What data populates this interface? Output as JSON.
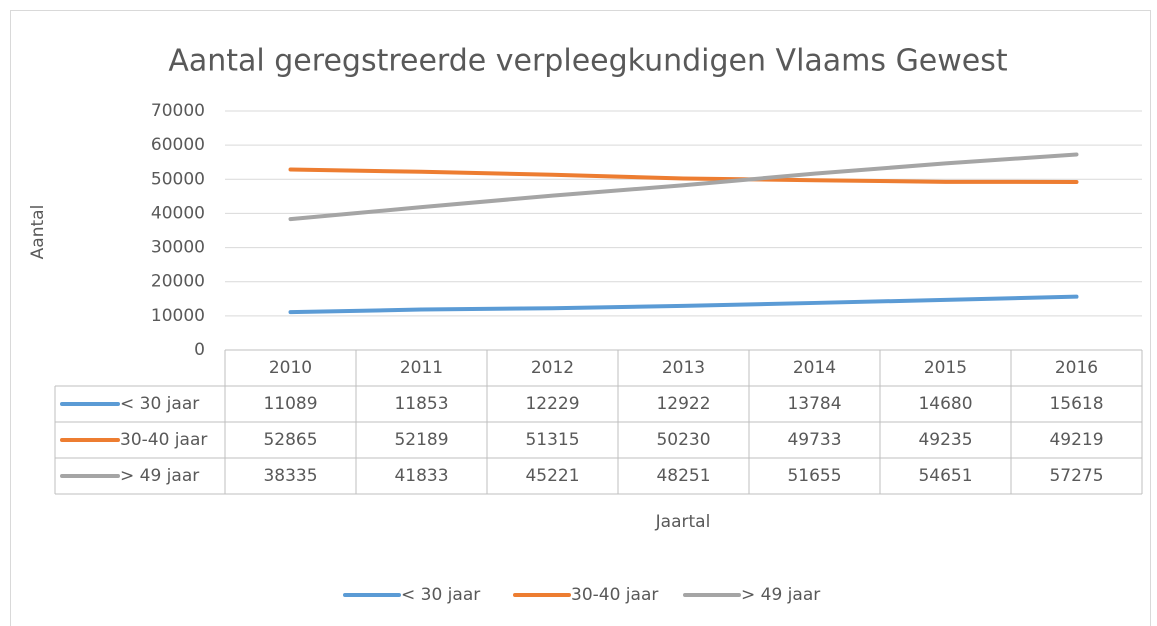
{
  "chart_data": {
    "type": "line",
    "title": "Aantal geregstreerde verpleegkundigen Vlaams Gewest",
    "x_label": "Jaartal",
    "y_label": "Aantal",
    "categories": [
      "2010",
      "2011",
      "2012",
      "2013",
      "2014",
      "2015",
      "2016"
    ],
    "series": [
      {
        "name": "< 30 jaar",
        "color": "#5b9bd5",
        "values": [
          11089,
          11853,
          12229,
          12922,
          13784,
          14680,
          15618
        ]
      },
      {
        "name": "30-40 jaar",
        "color": "#ed7d31",
        "values": [
          52865,
          52189,
          51315,
          50230,
          49733,
          49235,
          49219
        ]
      },
      {
        "name": "> 49 jaar",
        "color": "#a5a5a5",
        "values": [
          38335,
          41833,
          45221,
          48251,
          51655,
          54651,
          57275
        ]
      }
    ],
    "ylim": [
      0,
      70000
    ],
    "yticks": [
      0,
      10000,
      20000,
      30000,
      40000,
      50000,
      60000,
      70000
    ],
    "grid": true,
    "legend": "bottom",
    "data_table": true
  }
}
